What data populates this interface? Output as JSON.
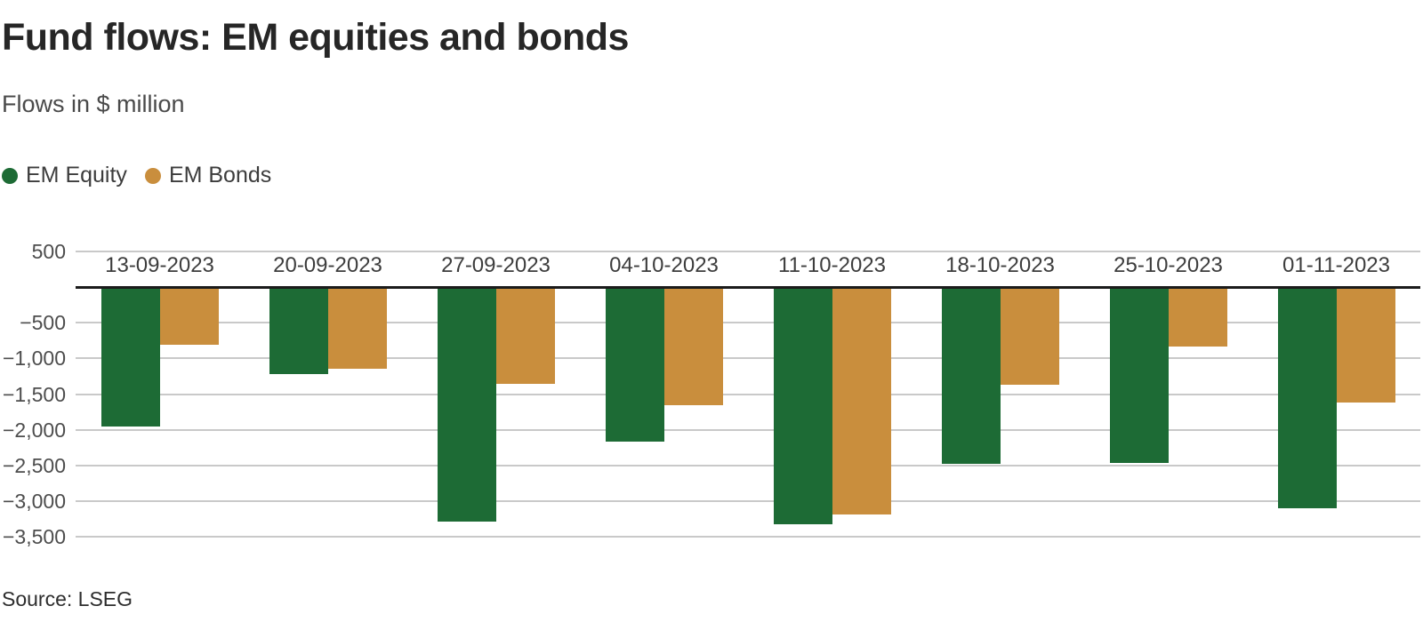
{
  "header": {
    "title": "Fund flows: EM equities and bonds",
    "subtitle": "Flows in $ million"
  },
  "legend": {
    "items": [
      {
        "label": "EM Equity",
        "color": "#1d6b35"
      },
      {
        "label": "EM Bonds",
        "color": "#c98e3d"
      }
    ]
  },
  "chart_data": {
    "type": "bar",
    "title": "Fund flows: EM equities and bonds",
    "subtitle": "Flows in $ million",
    "unit": "$ million",
    "categories": [
      "13-09-2023",
      "20-09-2023",
      "27-09-2023",
      "04-10-2023",
      "11-10-2023",
      "18-10-2023",
      "25-10-2023",
      "01-11-2023"
    ],
    "series": [
      {
        "name": "EM Equity",
        "color": "#1d6b35",
        "values": [
          -1950,
          -1220,
          -3290,
          -2170,
          -3320,
          -2480,
          -2460,
          -3100
        ]
      },
      {
        "name": "EM Bonds",
        "color": "#c98e3d",
        "values": [
          -810,
          -1140,
          -1360,
          -1660,
          -3190,
          -1370,
          -830,
          -1620
        ]
      }
    ],
    "ylim": [
      -3500,
      500
    ],
    "yticks": [
      500,
      -500,
      -1000,
      -1500,
      -2000,
      -2500,
      -3000,
      -3500
    ],
    "ytick_labels": [
      "500",
      "−500",
      "−1,000",
      "−1,500",
      "−2,000",
      "−2,500",
      "−3,000",
      "−3,500"
    ],
    "grid": true,
    "zero_line": true,
    "legend_position": "top-left"
  },
  "footer": {
    "source": "Source: LSEG"
  }
}
